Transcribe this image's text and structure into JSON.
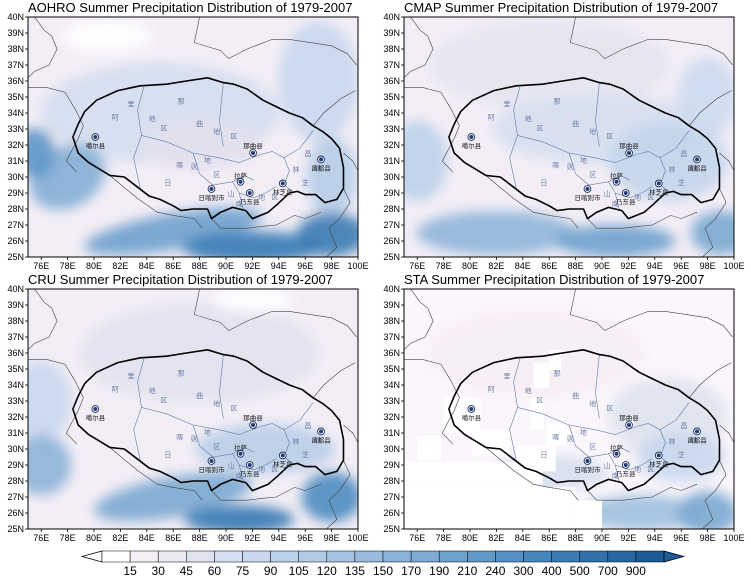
{
  "panels": [
    {
      "title": "AOHRO Summer Precipitation Distribution of 1979-2007",
      "variant": "aohro"
    },
    {
      "title": "CMAP Summer Precipitation Distribution of 1979-2007",
      "variant": "cmap"
    },
    {
      "title": "CRU Summer Precipitation Distribution of 1979-2007",
      "variant": "cru"
    },
    {
      "title": "STA Summer Precipitation Distribution of 1979-2007",
      "variant": "sta"
    }
  ],
  "lat_labels": [
    "40N",
    "39N",
    "38N",
    "37N",
    "36N",
    "35N",
    "34N",
    "33N",
    "32N",
    "31N",
    "30N",
    "29N",
    "28N",
    "27N",
    "26N",
    "25N"
  ],
  "lon_labels": [
    "76E",
    "78E",
    "80E",
    "82E",
    "84E",
    "86E",
    "88E",
    "90E",
    "92E",
    "94E",
    "96E",
    "98E",
    "100E"
  ],
  "cities": [
    "噶尔县",
    "那曲县",
    "昌都县",
    "拉萨",
    "林芝县",
    "日喀则市",
    "乃东县"
  ],
  "region_chars": [
    "阿",
    "里",
    "地",
    "区",
    "那",
    "曲",
    "地",
    "区",
    "日",
    "喀",
    "则",
    "地",
    "区",
    "山",
    "南",
    "地",
    "区",
    "林",
    "芝",
    "昌",
    "都"
  ],
  "colorbar": {
    "labels": [
      "15",
      "30",
      "45",
      "60",
      "75",
      "90",
      "105",
      "120",
      "135",
      "150",
      "170",
      "190",
      "210",
      "240",
      "300",
      "400",
      "500",
      "700",
      "900"
    ],
    "colors": [
      "#ffffff",
      "#f4eef6",
      "#eae8f2",
      "#dfe3ef",
      "#d4def0",
      "#c9d8ee",
      "#bdd2ea",
      "#b1cbe6",
      "#a5c3e2",
      "#98bbdd",
      "#8bb3d8",
      "#7daad3",
      "#6fa1cd",
      "#6198c8",
      "#538fc2",
      "#4786bb",
      "#3b7cb3",
      "#3071aa",
      "#2666a1",
      "#1d5b97"
    ]
  }
}
